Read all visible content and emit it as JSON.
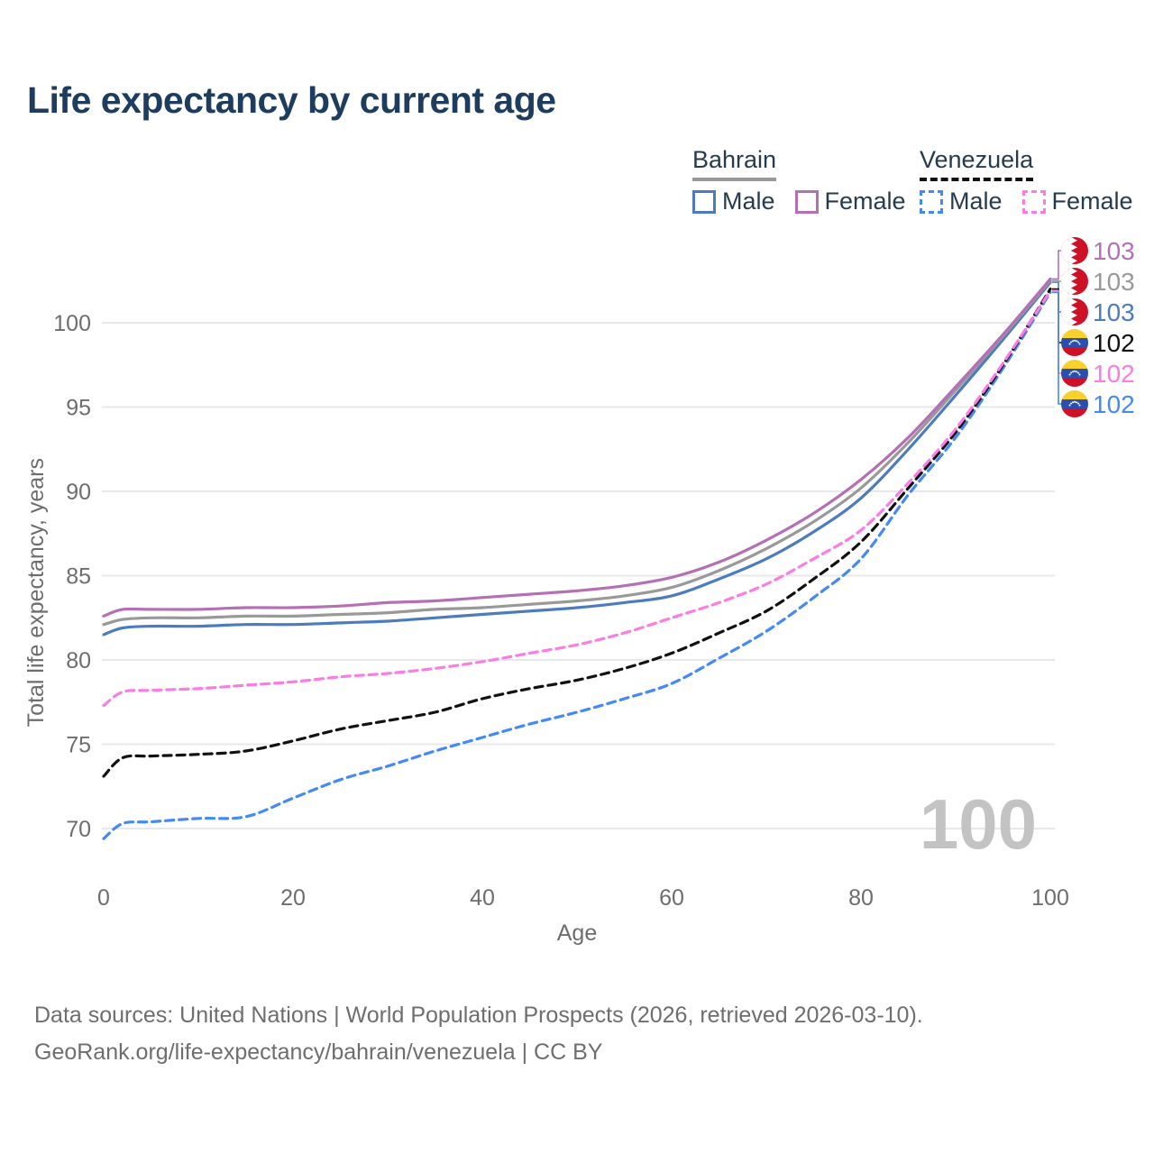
{
  "title": "Life expectancy by current age",
  "legend": {
    "groups": [
      {
        "country": "Bahrain",
        "underline_style": "solid",
        "underline_color": "#999999",
        "items": [
          {
            "label": "Male",
            "color": "#4d7cbe",
            "dashed": false
          },
          {
            "label": "Female",
            "color": "#b570b5",
            "dashed": false
          }
        ]
      },
      {
        "country": "Venezuela",
        "underline_style": "dashed",
        "underline_color": "#111111",
        "items": [
          {
            "label": "Male",
            "color": "#4489f4",
            "dashed": true
          },
          {
            "label": "Female",
            "color": "#fc7ce4",
            "dashed": true
          }
        ]
      }
    ]
  },
  "chart_data": {
    "type": "line",
    "title": "Life expectancy by current age",
    "xlabel": "Age",
    "ylabel": "Total life expectancy, years",
    "x": [
      0,
      2,
      5,
      10,
      15,
      20,
      25,
      30,
      35,
      40,
      45,
      50,
      55,
      60,
      65,
      70,
      75,
      80,
      85,
      90,
      95,
      100
    ],
    "xticks": [
      0,
      20,
      40,
      60,
      80,
      100
    ],
    "yticks": [
      70,
      75,
      80,
      85,
      90,
      95,
      100
    ],
    "xlim": [
      0,
      100
    ],
    "ylim": [
      68.6,
      104.2
    ],
    "grid": "horizontal",
    "legend_position": "top-right",
    "watermark": "100",
    "series": [
      {
        "name": "Bahrain Female",
        "country": "Bahrain",
        "sex": "Female",
        "style": "solid",
        "color": "#b570b5",
        "flag": "bahrain",
        "end_label": "103",
        "values": [
          82.6,
          83.0,
          83.0,
          83.0,
          83.1,
          83.1,
          83.2,
          83.4,
          83.5,
          83.7,
          83.9,
          84.1,
          84.4,
          84.9,
          85.8,
          87.1,
          88.7,
          90.7,
          93.2,
          96.2,
          99.3,
          102.6
        ]
      },
      {
        "name": "Bahrain Both sexes",
        "country": "Bahrain",
        "sex": "Both",
        "style": "solid",
        "color": "#999999",
        "flag": "bahrain",
        "end_label": "103",
        "values": [
          82.1,
          82.4,
          82.5,
          82.5,
          82.6,
          82.6,
          82.7,
          82.8,
          83.0,
          83.1,
          83.3,
          83.5,
          83.8,
          84.3,
          85.3,
          86.6,
          88.2,
          90.2,
          92.9,
          96.0,
          99.2,
          102.5
        ]
      },
      {
        "name": "Bahrain Male",
        "country": "Bahrain",
        "sex": "Male",
        "style": "solid",
        "color": "#4d7cbe",
        "flag": "bahrain",
        "end_label": "103",
        "values": [
          81.5,
          81.9,
          82.0,
          82.0,
          82.1,
          82.1,
          82.2,
          82.3,
          82.5,
          82.7,
          82.9,
          83.1,
          83.4,
          83.8,
          84.8,
          86.0,
          87.6,
          89.6,
          92.5,
          95.7,
          99.0,
          102.4
        ]
      },
      {
        "name": "Venezuela Both sexes",
        "country": "Venezuela",
        "sex": "Both",
        "style": "dashed",
        "color": "#111111",
        "flag": "venezuela",
        "end_label": "102",
        "values": [
          73.1,
          74.2,
          74.3,
          74.4,
          74.6,
          75.2,
          75.9,
          76.4,
          76.9,
          77.7,
          78.3,
          78.8,
          79.5,
          80.4,
          81.6,
          82.9,
          84.8,
          87.0,
          90.2,
          93.5,
          97.5,
          102.0
        ]
      },
      {
        "name": "Venezuela Female",
        "country": "Venezuela",
        "sex": "Female",
        "style": "dashed",
        "color": "#fc7ce4",
        "flag": "venezuela",
        "end_label": "102",
        "values": [
          77.3,
          78.1,
          78.2,
          78.3,
          78.5,
          78.7,
          79.0,
          79.2,
          79.5,
          79.9,
          80.4,
          80.9,
          81.6,
          82.5,
          83.4,
          84.5,
          86.0,
          87.7,
          90.5,
          93.7,
          97.6,
          101.9
        ]
      },
      {
        "name": "Venezuela Male",
        "country": "Venezuela",
        "sex": "Male",
        "style": "dashed",
        "color": "#4489f4",
        "flag": "venezuela",
        "end_label": "102",
        "values": [
          69.4,
          70.3,
          70.4,
          70.6,
          70.7,
          71.8,
          72.9,
          73.7,
          74.6,
          75.4,
          76.2,
          76.9,
          77.7,
          78.6,
          80.1,
          81.7,
          83.7,
          86.0,
          89.8,
          93.2,
          97.3,
          101.8
        ]
      }
    ]
  },
  "colors": {
    "title": "#1d3c5e",
    "axis_text": "#6d6d6d",
    "gridline": "#e8e8ec",
    "watermark": "#c3c3c3",
    "flag_red": "#ce1126",
    "flag_yellow": "#f8d12e",
    "flag_blue": "#2a4fae"
  },
  "footer": {
    "line1": "Data sources: United Nations | World Population Prospects (2026, retrieved 2026-03-10).",
    "line2": "GeoRank.org/life-expectancy/bahrain/venezuela | CC BY"
  }
}
